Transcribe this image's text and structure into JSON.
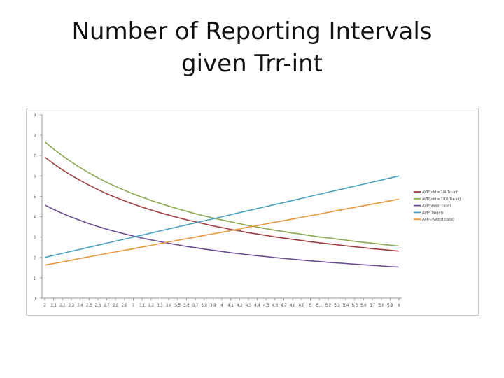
{
  "slide": {
    "title_line1": "Number of Reporting Intervals",
    "title_line2": "given Trr-int"
  },
  "chart_data": {
    "type": "line",
    "title": "",
    "xlabel": "",
    "ylabel": "",
    "ylim": [
      0,
      9
    ],
    "yticks": [
      0,
      1,
      2,
      3,
      4,
      5,
      6,
      7,
      8,
      9
    ],
    "grid": false,
    "legend_position": "right",
    "x": [
      "2",
      "2,1",
      "2,2",
      "2,3",
      "2,4",
      "2,5",
      "2,6",
      "2,7",
      "2,8",
      "2,9",
      "3",
      "3,1",
      "3,2",
      "3,3",
      "3,4",
      "3,5",
      "3,6",
      "3,7",
      "3,8",
      "3,9",
      "4",
      "4,1",
      "4,2",
      "4,3",
      "4,4",
      "4,5",
      "4,6",
      "4,7",
      "4,8",
      "4,9",
      "5",
      "5,1",
      "5,2",
      "5,3",
      "5,4",
      "5,5",
      "5,6",
      "5,7",
      "5,8",
      "5,9",
      "6"
    ],
    "series": [
      {
        "name": "AVP(old = 1/4 Trr-int)",
        "color": "#a0403e",
        "values": [
          6.93,
          6.6,
          6.3,
          6.03,
          5.78,
          5.55,
          5.33,
          5.13,
          4.95,
          4.78,
          4.62,
          4.47,
          4.33,
          4.2,
          4.08,
          3.96,
          3.85,
          3.75,
          3.65,
          3.55,
          3.47,
          3.38,
          3.3,
          3.22,
          3.15,
          3.08,
          3.01,
          2.95,
          2.89,
          2.83,
          2.77,
          2.72,
          2.67,
          2.62,
          2.57,
          2.52,
          2.48,
          2.43,
          2.39,
          2.35,
          2.31
        ]
      },
      {
        "name": "AVP(old = 1/10 Trr-int)",
        "color": "#8ca94f",
        "values": [
          7.68,
          7.32,
          6.99,
          6.69,
          6.41,
          6.15,
          5.91,
          5.69,
          5.49,
          5.3,
          5.12,
          4.96,
          4.8,
          4.66,
          4.52,
          4.39,
          4.27,
          4.15,
          4.04,
          3.94,
          3.84,
          3.75,
          3.66,
          3.57,
          3.49,
          3.41,
          3.34,
          3.27,
          3.2,
          3.14,
          3.07,
          3.01,
          2.96,
          2.9,
          2.85,
          2.79,
          2.74,
          2.7,
          2.65,
          2.6,
          2.56
        ]
      },
      {
        "name": "AVP(worst case)",
        "color": "#6a4e93",
        "values": [
          4.58,
          4.36,
          4.16,
          3.98,
          3.82,
          3.66,
          3.52,
          3.39,
          3.27,
          3.16,
          3.05,
          2.95,
          2.86,
          2.78,
          2.69,
          2.62,
          2.54,
          2.48,
          2.41,
          2.35,
          2.29,
          2.23,
          2.18,
          2.13,
          2.08,
          2.04,
          1.99,
          1.95,
          1.91,
          1.87,
          1.83,
          1.8,
          1.76,
          1.73,
          1.7,
          1.67,
          1.64,
          1.61,
          1.58,
          1.55,
          1.53
        ]
      },
      {
        "name": "AVP(Target)",
        "color": "#4aa0c0",
        "values": [
          2.0,
          2.1,
          2.2,
          2.3,
          2.4,
          2.5,
          2.6,
          2.7,
          2.8,
          2.9,
          3.0,
          3.1,
          3.2,
          3.3,
          3.4,
          3.5,
          3.6,
          3.7,
          3.8,
          3.9,
          4.0,
          4.1,
          4.2,
          4.3,
          4.4,
          4.5,
          4.6,
          4.7,
          4.8,
          4.9,
          5.0,
          5.1,
          5.2,
          5.3,
          5.4,
          5.5,
          5.6,
          5.7,
          5.8,
          5.9,
          6.0
        ]
      },
      {
        "name": "AVPF(Worst case)",
        "color": "#e8963c",
        "values": [
          1.62,
          1.7,
          1.78,
          1.86,
          1.95,
          2.03,
          2.11,
          2.19,
          2.27,
          2.35,
          2.43,
          2.51,
          2.59,
          2.68,
          2.76,
          2.84,
          2.92,
          3.0,
          3.08,
          3.16,
          3.24,
          3.32,
          3.4,
          3.49,
          3.57,
          3.65,
          3.73,
          3.81,
          3.89,
          3.97,
          4.05,
          4.13,
          4.21,
          4.3,
          4.38,
          4.46,
          4.54,
          4.62,
          4.7,
          4.78,
          4.86
        ]
      }
    ]
  }
}
